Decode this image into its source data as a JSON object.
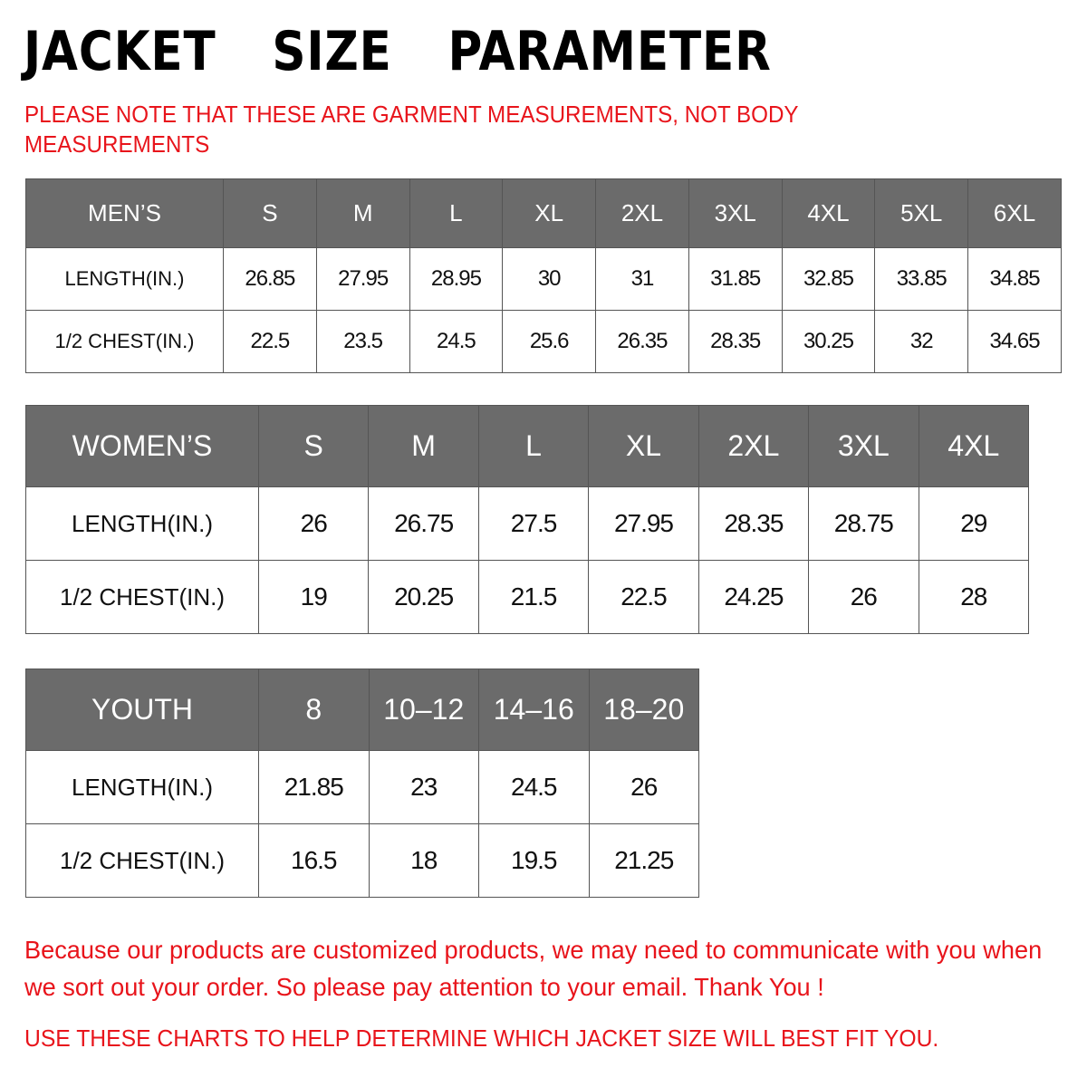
{
  "title": "JACKET  SIZE  PARAMETER",
  "note": "PLEASE NOTE THAT THESE ARE GARMENT MEASUREMENTS, NOT BODY MEASUREMENTS",
  "colors": {
    "header_bg": "#6b6b6b",
    "accent_red": "#e8141b"
  },
  "mens": {
    "header": [
      "MEN’S",
      "S",
      "M",
      "L",
      "XL",
      "2XL",
      "3XL",
      "4XL",
      "5XL",
      "6XL"
    ],
    "rows": [
      [
        "LENGTH(IN.)",
        "26.85",
        "27.95",
        "28.95",
        "30",
        "31",
        "31.85",
        "32.85",
        "33.85",
        "34.85"
      ],
      [
        "1/2 CHEST(IN.)",
        "22.5",
        "23.5",
        "24.5",
        "25.6",
        "26.35",
        "28.35",
        "30.25",
        "32",
        "34.65"
      ]
    ]
  },
  "womens": {
    "header": [
      "WOMEN’S",
      "S",
      "M",
      "L",
      "XL",
      "2XL",
      "3XL",
      "4XL"
    ],
    "rows": [
      [
        "LENGTH(IN.)",
        "26",
        "26.75",
        "27.5",
        "27.95",
        "28.35",
        "28.75",
        "29"
      ],
      [
        "1/2 CHEST(IN.)",
        "19",
        "20.25",
        "21.5",
        "22.5",
        "24.25",
        "26",
        "28"
      ]
    ]
  },
  "youth": {
    "header": [
      "YOUTH",
      "8",
      "10–12",
      "14–16",
      "18–20"
    ],
    "rows": [
      [
        "LENGTH(IN.)",
        "21.85",
        "23",
        "24.5",
        "26"
      ],
      [
        "1/2 CHEST(IN.)",
        "16.5",
        "18",
        "19.5",
        "21.25"
      ]
    ]
  },
  "footer": {
    "message": "Because our products are customized products, we may need to communicate with you when we sort out your order. So please pay attention to your email. Thank You !",
    "hint": "USE THESE CHARTS TO HELP DETERMINE WHICH JACKET SIZE WILL BEST FIT YOU."
  }
}
